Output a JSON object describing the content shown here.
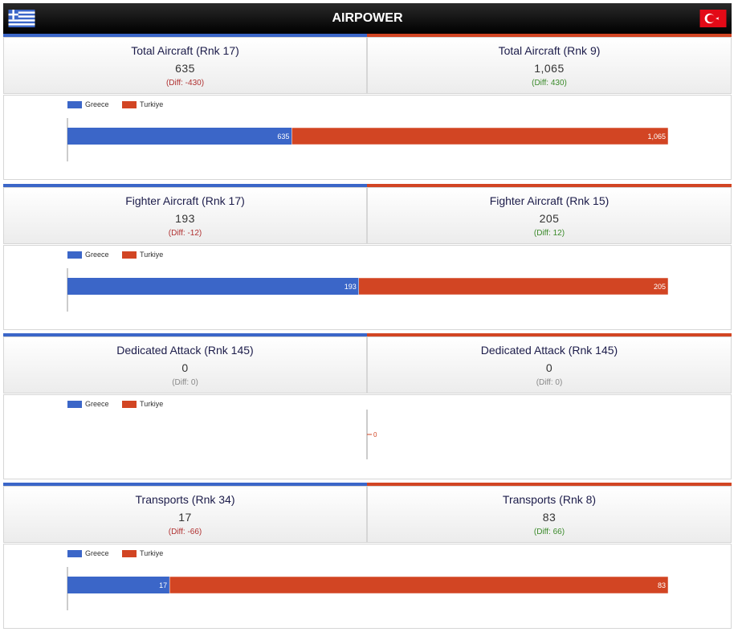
{
  "header": {
    "title": "AIRPOWER"
  },
  "colors": {
    "greece": "#3b66c8",
    "turkiye": "#d24523"
  },
  "legend": {
    "greece": "Greece",
    "turkiye": "Turkiye"
  },
  "sections": [
    {
      "left": {
        "label": "Total Aircraft (Rnk 17)",
        "value": "635",
        "diff": "(Diff: -430)"
      },
      "right": {
        "label": "Total Aircraft (Rnk 9)",
        "value": "1,065",
        "diff": "(Diff: 430)"
      }
    },
    {
      "left": {
        "label": "Fighter Aircraft (Rnk 17)",
        "value": "193",
        "diff": "(Diff: -12)"
      },
      "right": {
        "label": "Fighter Aircraft (Rnk 15)",
        "value": "205",
        "diff": "(Diff: 12)"
      }
    },
    {
      "left": {
        "label": "Dedicated Attack (Rnk 145)",
        "value": "0",
        "diff": "(Diff: 0)"
      },
      "right": {
        "label": "Dedicated Attack (Rnk 145)",
        "value": "0",
        "diff": "(Diff: 0)"
      }
    },
    {
      "left": {
        "label": "Transports (Rnk 34)",
        "value": "17",
        "diff": "(Diff: -66)"
      },
      "right": {
        "label": "Transports (Rnk 8)",
        "value": "83",
        "diff": "(Diff: 66)"
      }
    }
  ],
  "chart_data": [
    {
      "type": "bar",
      "orientation": "horizontal",
      "stacked": true,
      "series": [
        {
          "name": "Greece",
          "values": [
            635
          ],
          "labels": [
            "635"
          ]
        },
        {
          "name": "Turkiye",
          "values": [
            1065
          ],
          "labels": [
            "1,065"
          ]
        }
      ]
    },
    {
      "type": "bar",
      "orientation": "horizontal",
      "stacked": true,
      "series": [
        {
          "name": "Greece",
          "values": [
            193
          ],
          "labels": [
            "193"
          ]
        },
        {
          "name": "Turkiye",
          "values": [
            205
          ],
          "labels": [
            "205"
          ]
        }
      ]
    },
    {
      "type": "bar",
      "orientation": "horizontal",
      "stacked": true,
      "series": [
        {
          "name": "Greece",
          "values": [
            0
          ],
          "labels": [
            "0"
          ]
        },
        {
          "name": "Turkiye",
          "values": [
            0
          ],
          "labels": [
            "0"
          ]
        }
      ]
    },
    {
      "type": "bar",
      "orientation": "horizontal",
      "stacked": true,
      "series": [
        {
          "name": "Greece",
          "values": [
            17
          ],
          "labels": [
            "17"
          ]
        },
        {
          "name": "Turkiye",
          "values": [
            83
          ],
          "labels": [
            "83"
          ]
        }
      ]
    }
  ]
}
